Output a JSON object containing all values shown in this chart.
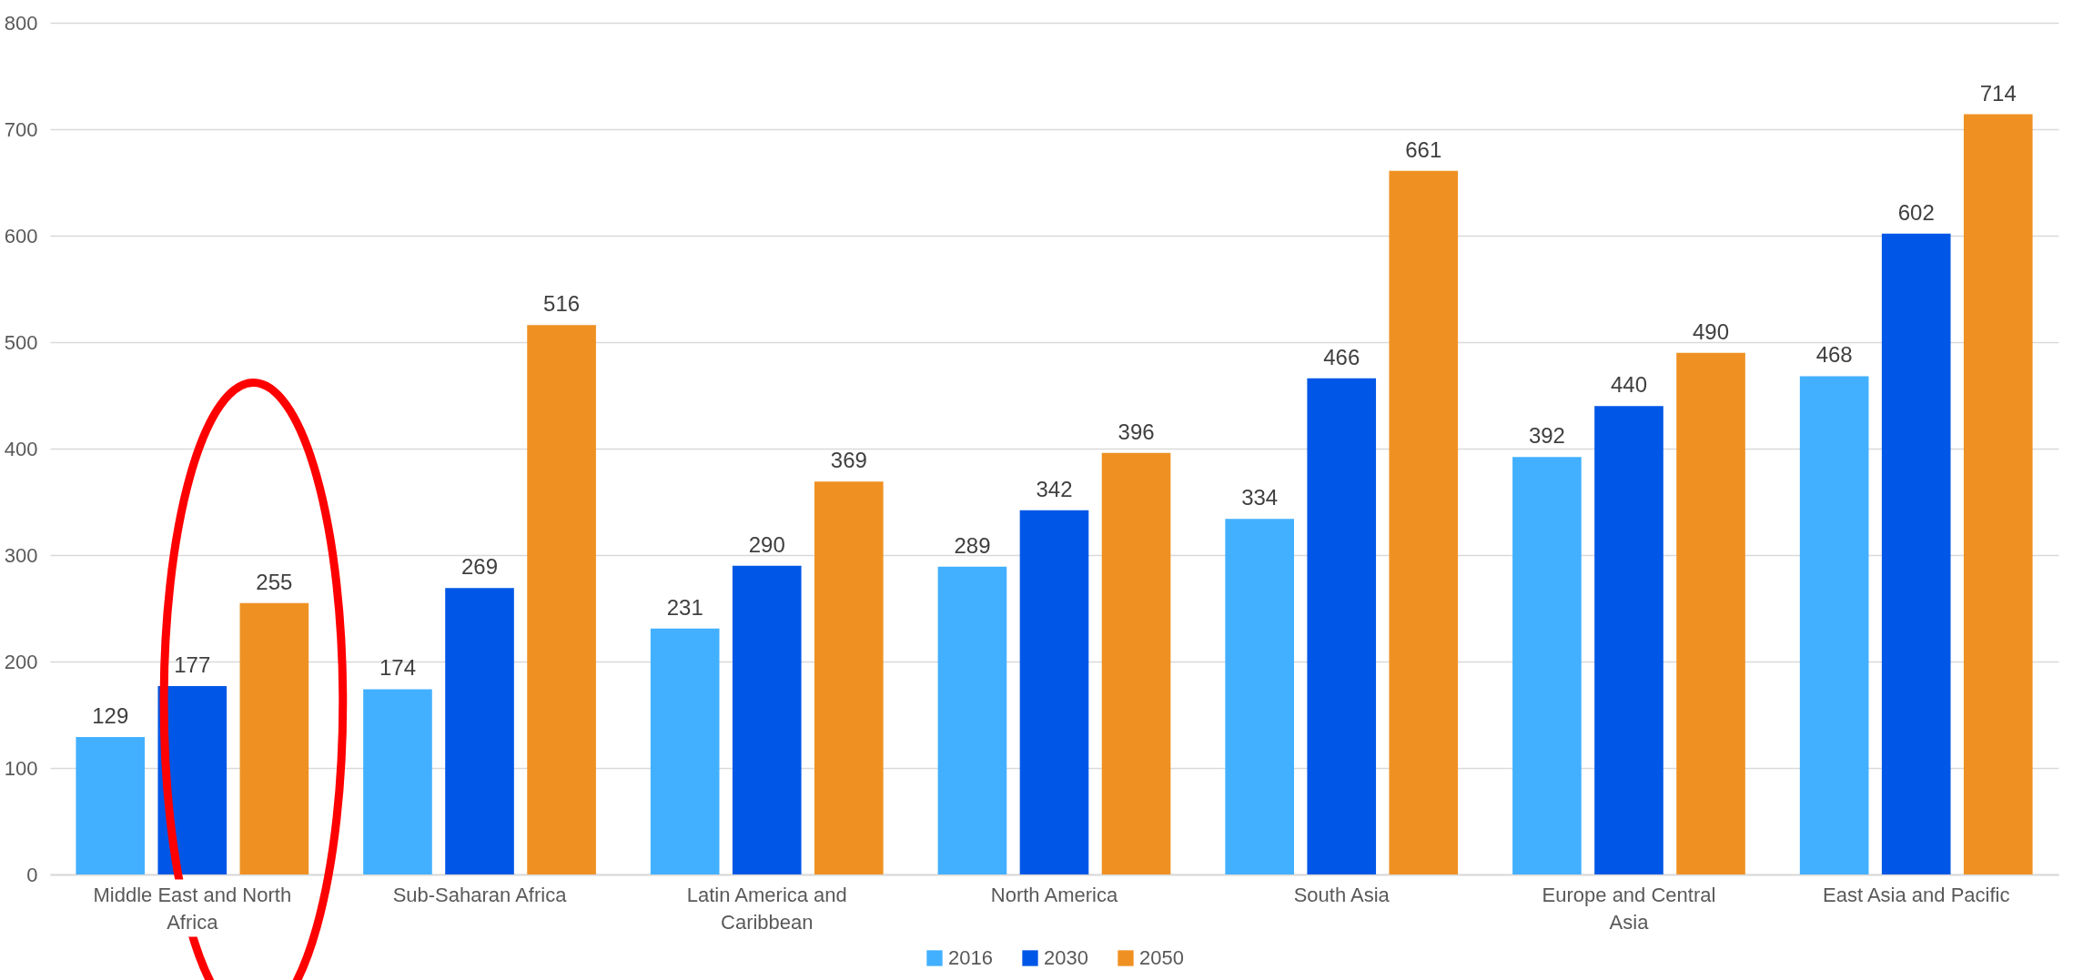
{
  "chart_data": {
    "type": "bar",
    "categories": [
      "Middle East and North Africa",
      "Sub-Saharan Africa",
      "Latin America and Caribbean",
      "North America",
      "South Asia",
      "Europe and Central Asia",
      "East Asia and Pacific"
    ],
    "series": [
      {
        "name": "2016",
        "color": "#42b0ff",
        "values": [
          129,
          174,
          231,
          289,
          334,
          392,
          468
        ]
      },
      {
        "name": "2030",
        "color": "#0057e7",
        "values": [
          177,
          269,
          290,
          342,
          466,
          440,
          602
        ]
      },
      {
        "name": "2050",
        "color": "#ef9122",
        "values": [
          255,
          516,
          369,
          396,
          661,
          490,
          714
        ]
      }
    ],
    "ylim": [
      0,
      800
    ],
    "yticks": [
      0,
      100,
      200,
      300,
      400,
      500,
      600,
      700,
      800
    ],
    "grid": "y",
    "legend": "bottom",
    "data_labels": true
  }
}
